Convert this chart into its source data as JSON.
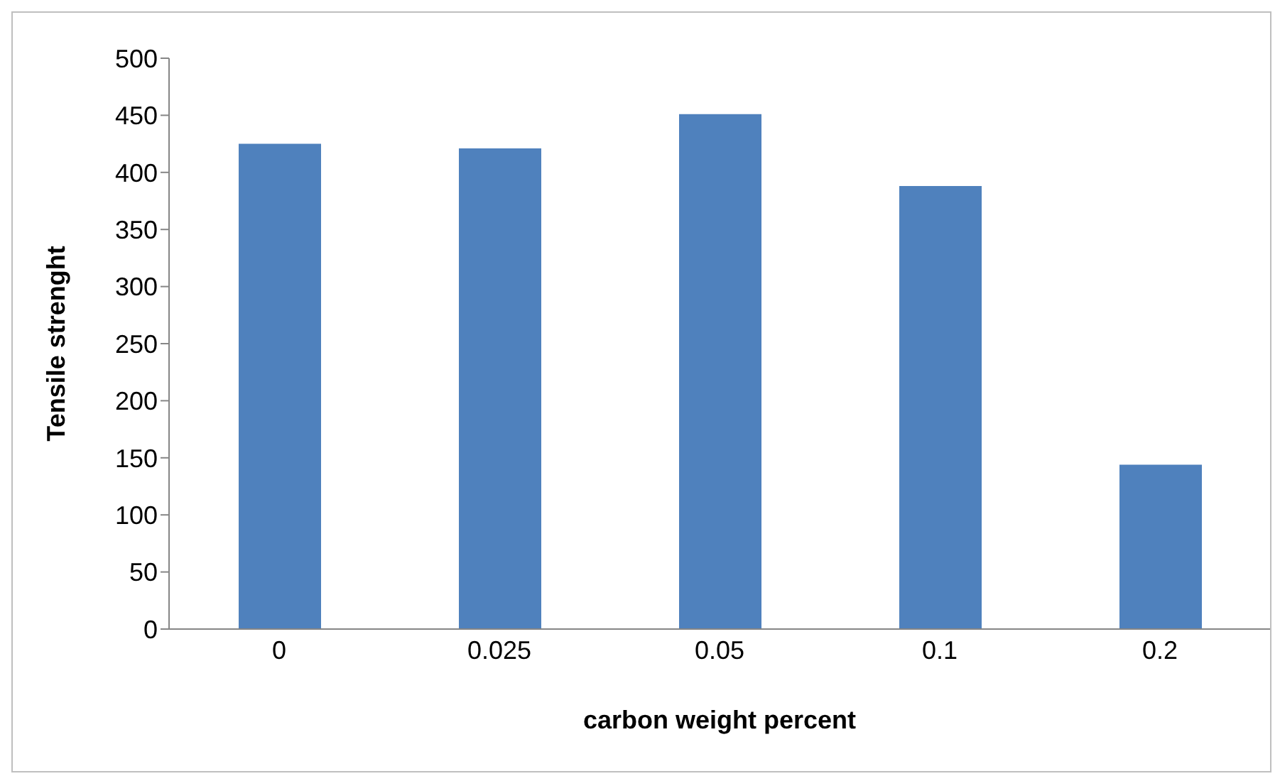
{
  "chart_data": {
    "type": "bar",
    "xlabel": "carbon weight percent",
    "ylabel": "Tensile strenght",
    "categories": [
      "0",
      "0.025",
      "0.05",
      "0.1",
      "0.2"
    ],
    "values": [
      425,
      421,
      451,
      388,
      144
    ],
    "color": "#4f81bd",
    "ylim": [
      0,
      500
    ],
    "yticks": [
      0,
      50,
      100,
      150,
      200,
      250,
      300,
      350,
      400,
      450,
      500
    ],
    "grid": false,
    "legend": false
  }
}
